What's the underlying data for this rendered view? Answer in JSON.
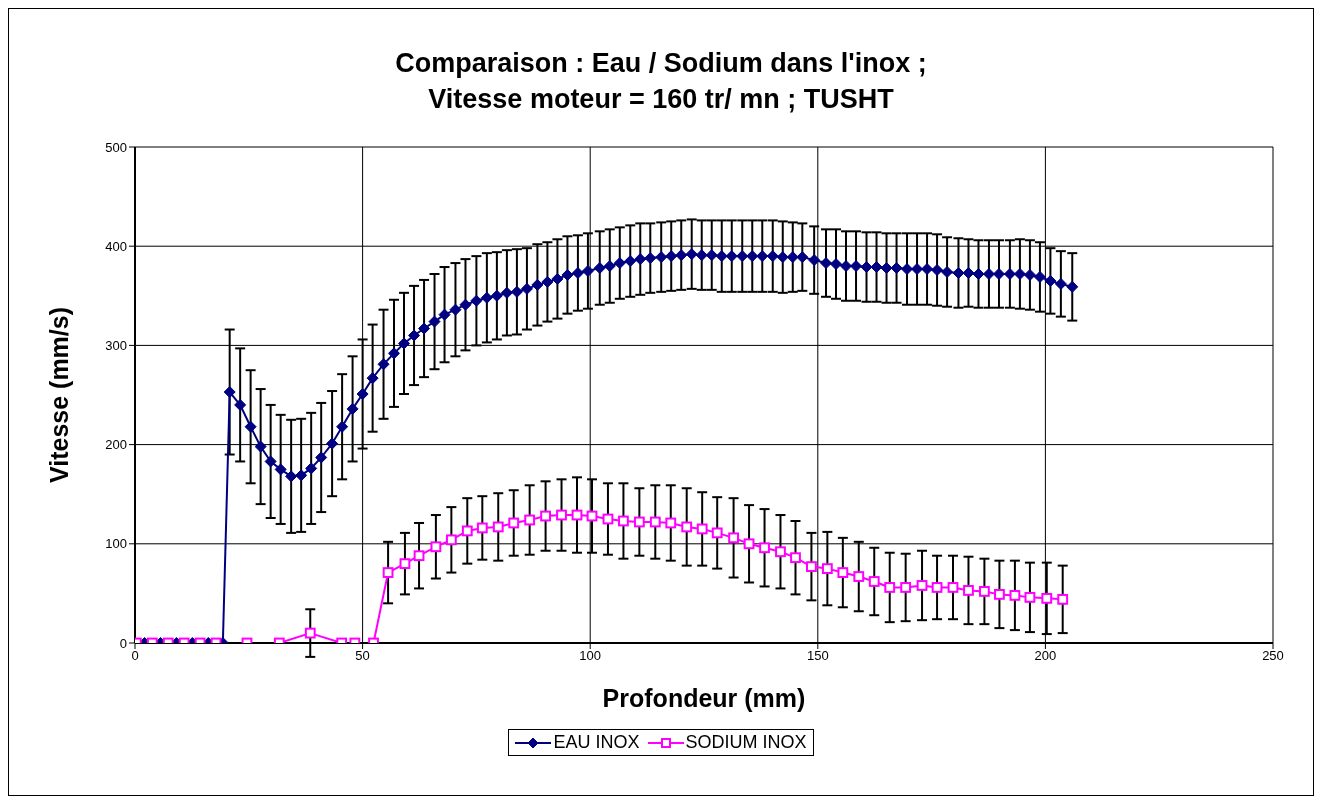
{
  "chart_data": {
    "type": "line",
    "title": "Comparaison : Eau / Sodium dans l'inox ;\nVitesse moteur = 160 tr/ mn ; TUSHT",
    "xlabel": "Profondeur (mm)",
    "ylabel": "Vitesse (mm/s)",
    "xlim": [
      0,
      250
    ],
    "xticks": [
      0,
      50,
      100,
      150,
      200,
      250
    ],
    "ylim": [
      0,
      500
    ],
    "yticks": [
      0,
      100,
      200,
      300,
      400,
      500
    ],
    "grid": true,
    "legend": "bottom",
    "line_style": "solid",
    "series": [
      {
        "name": "EAU INOX",
        "color": "#000080",
        "marker": "diamond",
        "x": [
          2.1,
          5.6,
          9.1,
          12.6,
          16.1,
          19.3,
          20.8,
          23.1,
          25.4,
          27.6,
          29.8,
          32,
          34.3,
          36.5,
          38.7,
          40.9,
          43.3,
          45.5,
          47.8,
          50,
          52.2,
          54.6,
          56.9,
          59.1,
          61.3,
          63.5,
          65.8,
          68,
          70.4,
          72.6,
          75,
          77.3,
          79.5,
          81.7,
          83.9,
          86.1,
          88.4,
          90.6,
          92.8,
          95,
          97.3,
          99.5,
          102.1,
          104.3,
          106.5,
          108.8,
          111,
          113.2,
          115.6,
          117.8,
          120,
          122.3,
          124.5,
          126.7,
          128.9,
          131.1,
          133.4,
          135.6,
          137.8,
          140.1,
          142.3,
          144.5,
          146.6,
          149.2,
          151.8,
          154,
          156.2,
          158.4,
          160.7,
          162.9,
          165.1,
          167.3,
          169.6,
          171.8,
          174,
          176.2,
          178.4,
          180.9,
          183.1,
          185.3,
          187.6,
          189.8,
          192.2,
          194.4,
          196.6,
          198.8,
          201.1,
          203.4,
          205.9
        ],
        "values": [
          0,
          0,
          0,
          0,
          0,
          0,
          253,
          240,
          218,
          198,
          183,
          175,
          168,
          169,
          176,
          187,
          201,
          218,
          236,
          251,
          267,
          281,
          292,
          302,
          310,
          317,
          324,
          331,
          336,
          341,
          345,
          348,
          350,
          353,
          354,
          357,
          361,
          364,
          367,
          371,
          373,
          375,
          378,
          380,
          383,
          385,
          387,
          388,
          389,
          390,
          391,
          392,
          391,
          391,
          390,
          390,
          390,
          390,
          390,
          390,
          389,
          389,
          389,
          386,
          383,
          382,
          380,
          380,
          379,
          379,
          378,
          378,
          377,
          377,
          377,
          376,
          374,
          373,
          373,
          372,
          372,
          372,
          372,
          372,
          371,
          369,
          365,
          362,
          359
        ],
        "errors": [
          null,
          null,
          null,
          null,
          null,
          null,
          63,
          57,
          57,
          58,
          57,
          55,
          57,
          57,
          56,
          55,
          53,
          53,
          53,
          55,
          54,
          55,
          54,
          51,
          50,
          49,
          48,
          48,
          47,
          46,
          45,
          45,
          44,
          43,
          43,
          41,
          41,
          40,
          40,
          39,
          38,
          38,
          37,
          37,
          36,
          36,
          36,
          35,
          35,
          35,
          35,
          35,
          35,
          35,
          36,
          36,
          36,
          36,
          36,
          36,
          36,
          35,
          34,
          34,
          34,
          35,
          35,
          35,
          35,
          35,
          35,
          35,
          36,
          36,
          36,
          36,
          35,
          35,
          34,
          34,
          34,
          34,
          34,
          35,
          35,
          35,
          33,
          33,
          34
        ]
      },
      {
        "name": "SODIUM INOX",
        "color": "#ff00ff",
        "marker": "square",
        "x": [
          0.3,
          3.8,
          7.3,
          10.8,
          14.3,
          17.8,
          24.6,
          31.7,
          38.5,
          45.4,
          48.3,
          52.4,
          55.6,
          59.3,
          62.4,
          66.1,
          69.5,
          73,
          76.3,
          79.8,
          83.2,
          86.7,
          90.2,
          93.7,
          97.1,
          100.4,
          103.9,
          107.3,
          110.8,
          114.3,
          117.7,
          121.2,
          124.6,
          127.9,
          131.5,
          134.9,
          138.3,
          141.8,
          145.1,
          148.6,
          152.1,
          155.5,
          159,
          162.4,
          165.8,
          169.3,
          172.9,
          176.2,
          179.7,
          183.1,
          186.6,
          189.9,
          193.3,
          196.6,
          200.3,
          203.8
        ],
        "values": [
          0,
          0,
          0,
          0,
          0,
          0,
          0,
          0,
          10,
          0,
          0,
          0,
          71,
          80,
          88,
          97,
          104,
          113,
          116,
          117,
          121,
          124,
          128,
          129,
          129,
          128,
          125,
          123,
          122,
          122,
          121,
          117,
          115,
          111,
          106,
          100,
          96,
          92,
          86,
          77,
          75,
          71,
          67,
          62,
          56,
          56,
          58,
          56,
          56,
          53,
          52,
          49,
          48,
          46,
          45,
          44
        ],
        "errors": [
          null,
          null,
          null,
          null,
          null,
          null,
          null,
          null,
          24,
          null,
          null,
          null,
          31,
          31,
          33,
          32,
          33,
          33,
          32,
          34,
          33,
          35,
          35,
          36,
          38,
          37,
          36,
          38,
          34,
          37,
          38,
          39,
          37,
          36,
          40,
          39,
          39,
          37,
          37,
          34,
          37,
          35,
          35,
          34,
          35,
          34,
          35,
          32,
          32,
          34,
          33,
          34,
          35,
          35,
          36,
          34
        ]
      }
    ]
  }
}
